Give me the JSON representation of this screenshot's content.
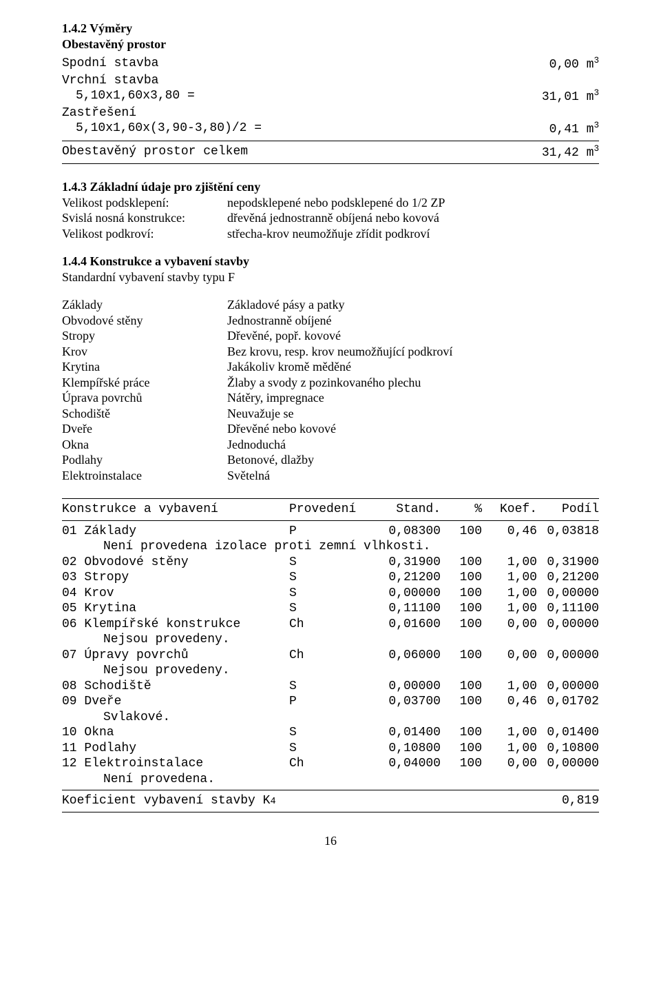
{
  "heading142": "1.4.2 Výměry",
  "heading_obes": "Obestavěný prostor",
  "calc": {
    "spodni_label": "Spodní stavba",
    "spodni_val": "0,00 m",
    "vrchni_label": "Vrchní stavba",
    "vrchni_calc": "5,10x1,60x3,80 =",
    "vrchni_val": "31,01 m",
    "zastreseni_label": "Zastřešení",
    "zastreseni_calc": "5,10x1,60x(3,90-3,80)/2 =",
    "zastreseni_val": "0,41 m",
    "total_label": "Obestavěný prostor celkem",
    "total_val": "31,42 m"
  },
  "heading143": "1.4.3 Základní údaje pro zjištění ceny",
  "basics": [
    {
      "k": "Velikost podsklepení:",
      "v": "nepodsklepené nebo podsklepené do 1/2 ZP"
    },
    {
      "k": "Svislá nosná konstrukce:",
      "v": "dřevěná jednostranně obíjená nebo kovová"
    },
    {
      "k": "Velikost podkroví:",
      "v": "střecha-krov neumožňuje zřídit podkroví"
    }
  ],
  "heading144": "1.4.4 Konstrukce a vybavení stavby",
  "std_line": "Standardní vybavení stavby typu F",
  "spec": [
    {
      "k": "Základy",
      "v": "Základové pásy a patky"
    },
    {
      "k": "Obvodové stěny",
      "v": "Jednostranně obíjené"
    },
    {
      "k": "Stropy",
      "v": "Dřevěné, popř. kovové"
    },
    {
      "k": "Krov",
      "v": "Bez krovu, resp. krov neumožňující podkroví"
    },
    {
      "k": "Krytina",
      "v": "Jakákoliv kromě měděné"
    },
    {
      "k": "Klempířské práce",
      "v": "Žlaby a svody z pozinkovaného plechu"
    },
    {
      "k": "Úprava povrchů",
      "v": "Nátěry, impregnace"
    },
    {
      "k": "Schodiště",
      "v": "Neuvažuje se"
    },
    {
      "k": "Dveře",
      "v": "Dřevěné nebo kovové"
    },
    {
      "k": "Okna",
      "v": "Jednoduchá"
    },
    {
      "k": "Podlahy",
      "v": "Betonové, dlažby"
    },
    {
      "k": "Elektroinstalace",
      "v": "Světelná"
    }
  ],
  "table": {
    "head": {
      "c1": "Konstrukce a vybavení",
      "c2": "Provedení",
      "c3": "Stand.",
      "c4": "%",
      "c5": "Koef.",
      "c6": "Podíl"
    },
    "rows": [
      {
        "n": "01 Základy",
        "p": "P",
        "s": "0,08300",
        "pc": "100",
        "k": "0,46",
        "d": "0,03818",
        "note": "Není provedena izolace proti zemní vlhkosti."
      },
      {
        "n": "02 Obvodové stěny",
        "p": "S",
        "s": "0,31900",
        "pc": "100",
        "k": "1,00",
        "d": "0,31900"
      },
      {
        "n": "03 Stropy",
        "p": "S",
        "s": "0,21200",
        "pc": "100",
        "k": "1,00",
        "d": "0,21200"
      },
      {
        "n": "04 Krov",
        "p": "S",
        "s": "0,00000",
        "pc": "100",
        "k": "1,00",
        "d": "0,00000"
      },
      {
        "n": "05 Krytina",
        "p": "S",
        "s": "0,11100",
        "pc": "100",
        "k": "1,00",
        "d": "0,11100"
      },
      {
        "n": "06 Klempířské konstrukce",
        "p": "Ch",
        "s": "0,01600",
        "pc": "100",
        "k": "0,00",
        "d": "0,00000",
        "note": "Nejsou provedeny."
      },
      {
        "n": "07 Úpravy povrchů",
        "p": "Ch",
        "s": "0,06000",
        "pc": "100",
        "k": "0,00",
        "d": "0,00000",
        "note": "Nejsou provedeny."
      },
      {
        "n": "08 Schodiště",
        "p": "S",
        "s": "0,00000",
        "pc": "100",
        "k": "1,00",
        "d": "0,00000"
      },
      {
        "n": "09 Dveře",
        "p": "P",
        "s": "0,03700",
        "pc": "100",
        "k": "0,46",
        "d": "0,01702",
        "note": "Svlakové."
      },
      {
        "n": "10 Okna",
        "p": "S",
        "s": "0,01400",
        "pc": "100",
        "k": "1,00",
        "d": "0,01400"
      },
      {
        "n": "11 Podlahy",
        "p": "S",
        "s": "0,10800",
        "pc": "100",
        "k": "1,00",
        "d": "0,10800"
      },
      {
        "n": "12 Elektroinstalace",
        "p": "Ch",
        "s": "0,04000",
        "pc": "100",
        "k": "0,00",
        "d": "0,00000",
        "note": "Není provedena."
      }
    ],
    "koef_label": "Koeficient vybavení stavby K",
    "koef_sub": "4",
    "koef_val": "0,819"
  },
  "page": "16"
}
